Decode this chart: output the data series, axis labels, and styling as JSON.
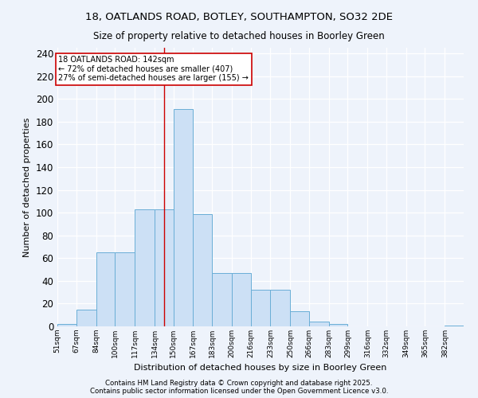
{
  "title1": "18, OATLANDS ROAD, BOTLEY, SOUTHAMPTON, SO32 2DE",
  "title2": "Size of property relative to detached houses in Boorley Green",
  "xlabel": "Distribution of detached houses by size in Boorley Green",
  "ylabel": "Number of detached properties",
  "bar_color": "#cce0f5",
  "bar_edge_color": "#6aaed6",
  "background_color": "#eef3fb",
  "grid_color": "#ffffff",
  "bin_labels": [
    "51sqm",
    "67sqm",
    "84sqm",
    "100sqm",
    "117sqm",
    "134sqm",
    "150sqm",
    "167sqm",
    "183sqm",
    "200sqm",
    "216sqm",
    "233sqm",
    "250sqm",
    "266sqm",
    "283sqm",
    "299sqm",
    "316sqm",
    "332sqm",
    "349sqm",
    "365sqm",
    "382sqm"
  ],
  "bin_edges": [
    51,
    67,
    84,
    100,
    117,
    134,
    150,
    167,
    183,
    200,
    216,
    233,
    250,
    266,
    283,
    299,
    316,
    332,
    349,
    365,
    382,
    398
  ],
  "bar_values": [
    2,
    15,
    65,
    65,
    103,
    103,
    191,
    99,
    47,
    47,
    32,
    32,
    13,
    4,
    2,
    0,
    0,
    0,
    0,
    0,
    1
  ],
  "property_size": 142,
  "vline_color": "#cc0000",
  "annotation_text": "18 OATLANDS ROAD: 142sqm\n← 72% of detached houses are smaller (407)\n27% of semi-detached houses are larger (155) →",
  "annotation_box_color": "#ffffff",
  "annotation_box_edge": "#cc0000",
  "ylim": [
    0,
    245
  ],
  "yticks": [
    0,
    20,
    40,
    60,
    80,
    100,
    120,
    140,
    160,
    180,
    200,
    220,
    240
  ],
  "footer1": "Contains HM Land Registry data © Crown copyright and database right 2025.",
  "footer2": "Contains public sector information licensed under the Open Government Licence v3.0."
}
